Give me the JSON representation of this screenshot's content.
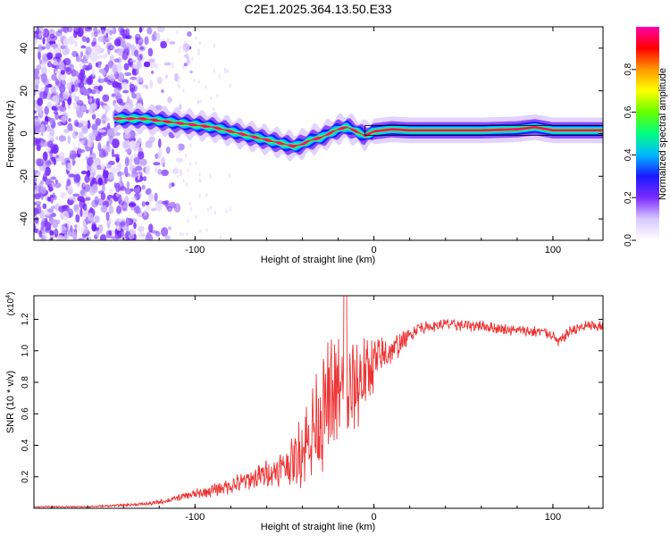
{
  "title": "C2E1.2025.364.13.50.E33",
  "colors": {
    "snr_line": "#ee3333",
    "signal_core": "#ff1060",
    "frame": "#000000",
    "background": "#ffffff"
  },
  "chart_data": [
    {
      "type": "heatmap",
      "name": "spectrogram",
      "title": "C2E1.2025.364.13.50.E33",
      "xlabel": "Height of straight line (km)",
      "ylabel": "Frequency (Hz)",
      "xlim": [
        -190,
        128
      ],
      "ylim": [
        -50,
        50
      ],
      "xticks": [
        -100,
        0,
        100
      ],
      "xtick_labels": [
        "-100",
        "0",
        "100"
      ],
      "yticks": [
        40,
        20,
        0,
        -20,
        -40
      ],
      "ytick_labels": [
        "40",
        "20",
        "0",
        "-20",
        "-40"
      ],
      "colorbar": {
        "label": "Normalized spectral amplitude",
        "range": [
          0,
          1
        ],
        "ticks": [
          0,
          0.2,
          0.4,
          0.6,
          0.8
        ],
        "tick_labels": [
          "0.0",
          "0.2",
          "0.4",
          "0.6",
          "0.8"
        ],
        "colormap": [
          "#ffffff",
          "#d9c8ff",
          "#7a2cff",
          "#1a1aff",
          "#00b8ff",
          "#00ff80",
          "#66ff00",
          "#ffff00",
          "#ff9900",
          "#ff0000",
          "#ff00aa"
        ]
      },
      "noise_region_x": [
        -190,
        -110
      ],
      "signal_track": {
        "x": [
          -140,
          -130,
          -120,
          -110,
          -100,
          -90,
          -80,
          -70,
          -60,
          -50,
          -45,
          -40,
          -35,
          -30,
          -25,
          -20,
          -15,
          -10,
          -5,
          0,
          10,
          20,
          40,
          60,
          80,
          90,
          100,
          110,
          128
        ],
        "hz": [
          7,
          7,
          6,
          5,
          4,
          3,
          1,
          -1,
          -3,
          -5,
          -6,
          -5,
          -3,
          -2,
          0,
          2,
          3,
          1,
          -1,
          1,
          2,
          1.5,
          1.5,
          1.5,
          2,
          3,
          1.5,
          1.5,
          1.5
        ]
      }
    },
    {
      "type": "line",
      "name": "snr",
      "xlabel": "Height of straight line (km)",
      "ylabel": "SNR (10 * v/v)",
      "y_scale_label": "(x10",
      "y_scale_exponent": "4",
      "xlim": [
        -190,
        128
      ],
      "ylim": [
        0,
        1.35
      ],
      "xticks": [
        -100,
        0,
        100
      ],
      "xtick_labels": [
        "-100",
        "0",
        "100"
      ],
      "yticks": [
        1.2,
        1.0,
        0.8,
        0.6,
        0.4,
        0.2
      ],
      "ytick_labels": [
        "1.2",
        "1.0",
        "0.8",
        "0.6",
        "0.4",
        "0.2"
      ],
      "series": [
        {
          "name": "SNR",
          "x": [
            -190,
            -160,
            -140,
            -125,
            -115,
            -105,
            -95,
            -85,
            -75,
            -65,
            -55,
            -45,
            -40,
            -35,
            -30,
            -25,
            -20,
            -15,
            -10,
            -5,
            0,
            5,
            10,
            15,
            20,
            25,
            30,
            35,
            40,
            50,
            60,
            70,
            80,
            90,
            95,
            100,
            103,
            110,
            120,
            128
          ],
          "values": [
            0.01,
            0.01,
            0.02,
            0.03,
            0.05,
            0.08,
            0.1,
            0.13,
            0.16,
            0.2,
            0.24,
            0.3,
            0.38,
            0.48,
            0.58,
            0.68,
            0.74,
            0.7,
            0.78,
            0.85,
            0.92,
            0.97,
            1.0,
            1.05,
            1.1,
            1.15,
            1.15,
            1.16,
            1.17,
            1.16,
            1.16,
            1.14,
            1.13,
            1.12,
            1.12,
            1.1,
            1.05,
            1.13,
            1.16,
            1.15
          ],
          "noise_amplitude": [
            0.003,
            0.004,
            0.006,
            0.01,
            0.015,
            0.02,
            0.03,
            0.04,
            0.05,
            0.06,
            0.08,
            0.12,
            0.2,
            0.26,
            0.3,
            0.32,
            0.3,
            0.28,
            0.25,
            0.2,
            0.15,
            0.1,
            0.08,
            0.06,
            0.04,
            0.03,
            0.03,
            0.03,
            0.03,
            0.03,
            0.03,
            0.03,
            0.03,
            0.03,
            0.03,
            0.03,
            0.03,
            0.03,
            0.03,
            0.03
          ]
        }
      ]
    }
  ]
}
